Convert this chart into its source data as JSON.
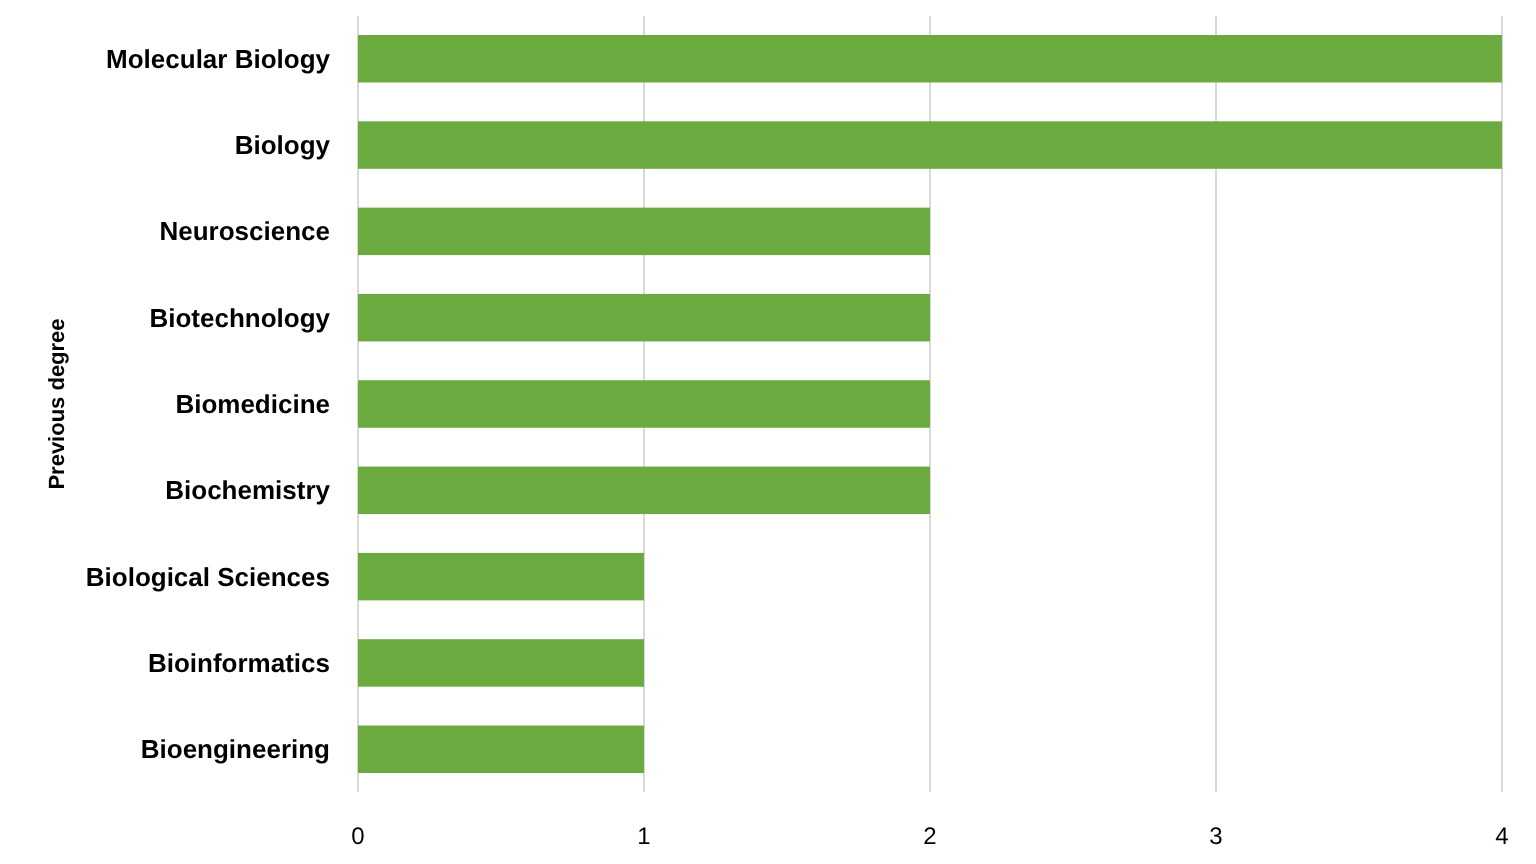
{
  "chart_data": {
    "type": "bar",
    "orientation": "horizontal",
    "ylabel": "Previous degree",
    "categories": [
      "Molecular Biology",
      "Biology",
      "Neuroscience",
      "Biotechnology",
      "Biomedicine",
      "Biochemistry",
      "Biological Sciences",
      "Bioinformatics",
      "Bioengineering"
    ],
    "values": [
      4,
      4,
      2,
      2,
      2,
      2,
      1,
      1,
      1
    ],
    "color": "#6aaa3e",
    "xlim": [
      0,
      4
    ],
    "xticks": [
      0,
      1,
      2,
      3,
      4
    ],
    "grid": "x"
  }
}
